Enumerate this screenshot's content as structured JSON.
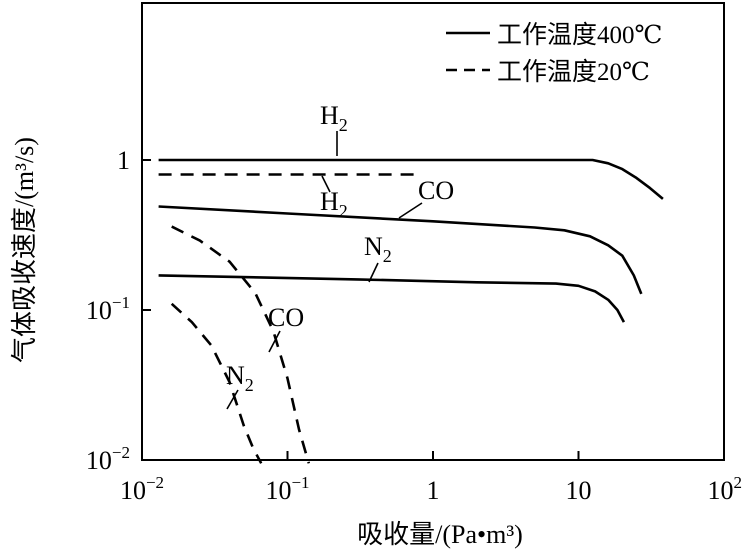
{
  "chart_data": {
    "type": "line",
    "xlabel": "吸收量/(Pa•m³)",
    "ylabel": "气体吸收速度/(m³/s)",
    "x_scale": "log",
    "y_scale": "log",
    "xlim": [
      0.01,
      100
    ],
    "ylim": [
      0.01,
      10
    ],
    "x_ticks": [
      {
        "value": 0.01,
        "base": "10",
        "exp": "−2"
      },
      {
        "value": 0.1,
        "base": "10",
        "exp": "−1"
      },
      {
        "value": 1,
        "base": "1",
        "exp": ""
      },
      {
        "value": 10,
        "base": "10",
        "exp": ""
      },
      {
        "value": 100,
        "base": "10",
        "exp": "2"
      }
    ],
    "y_ticks": [
      {
        "value": 0.01,
        "base": "10",
        "exp": "−2"
      },
      {
        "value": 0.1,
        "base": "10",
        "exp": "−1"
      },
      {
        "value": 1,
        "base": "1",
        "exp": ""
      }
    ],
    "grid": false,
    "legend": {
      "position": "top-right",
      "entries": [
        {
          "label": "工作温度400℃",
          "style": "solid"
        },
        {
          "label": "工作温度20℃",
          "style": "dashed"
        }
      ]
    },
    "series": [
      {
        "name": "H₂",
        "condition": "工作温度400℃",
        "style": "solid",
        "points": [
          [
            0.013,
            1.0
          ],
          [
            0.5,
            1.0
          ],
          [
            5,
            1.0
          ],
          [
            12.5,
            1.0
          ],
          [
            16,
            0.95
          ],
          [
            20,
            0.87
          ],
          [
            25,
            0.76
          ],
          [
            31,
            0.65
          ],
          [
            38,
            0.55
          ]
        ]
      },
      {
        "name": "CO",
        "condition": "工作温度400℃",
        "style": "solid",
        "points": [
          [
            0.013,
            0.49
          ],
          [
            0.1,
            0.44
          ],
          [
            1,
            0.39
          ],
          [
            5,
            0.355
          ],
          [
            8,
            0.34
          ],
          [
            12,
            0.31
          ],
          [
            16,
            0.27
          ],
          [
            20,
            0.23
          ],
          [
            24,
            0.17
          ],
          [
            27,
            0.128
          ]
        ]
      },
      {
        "name": "N₂",
        "condition": "工作温度400℃",
        "style": "solid",
        "points": [
          [
            0.013,
            0.17
          ],
          [
            0.3,
            0.16
          ],
          [
            2,
            0.153
          ],
          [
            7,
            0.15
          ],
          [
            10,
            0.145
          ],
          [
            13,
            0.133
          ],
          [
            16,
            0.117
          ],
          [
            18.5,
            0.1
          ],
          [
            20.5,
            0.083
          ]
        ]
      },
      {
        "name": "H₂",
        "condition": "工作温度20℃",
        "style": "dashed",
        "points": [
          [
            0.013,
            0.8
          ],
          [
            0.8,
            0.8
          ]
        ]
      },
      {
        "name": "CO",
        "condition": "工作温度20℃",
        "style": "dashed",
        "points": [
          [
            0.016,
            0.36
          ],
          [
            0.025,
            0.29
          ],
          [
            0.04,
            0.21
          ],
          [
            0.06,
            0.13
          ],
          [
            0.08,
            0.072
          ],
          [
            0.1,
            0.035
          ],
          [
            0.12,
            0.016
          ],
          [
            0.14,
            0.0095
          ]
        ]
      },
      {
        "name": "N₂",
        "condition": "工作温度20℃",
        "style": "dashed",
        "points": [
          [
            0.016,
            0.11
          ],
          [
            0.022,
            0.083
          ],
          [
            0.03,
            0.058
          ],
          [
            0.04,
            0.033
          ],
          [
            0.05,
            0.017
          ],
          [
            0.058,
            0.012
          ],
          [
            0.066,
            0.0095
          ]
        ]
      }
    ],
    "annotations": [
      {
        "text": "H",
        "sub": "2",
        "series_index": 0
      },
      {
        "text": "CO",
        "sub": "",
        "series_index": 1
      },
      {
        "text": "N",
        "sub": "2",
        "series_index": 2
      },
      {
        "text": "H",
        "sub": "2",
        "series_index": 3
      },
      {
        "text": "CO",
        "sub": "",
        "series_index": 4
      },
      {
        "text": "N",
        "sub": "2",
        "series_index": 5
      }
    ]
  }
}
